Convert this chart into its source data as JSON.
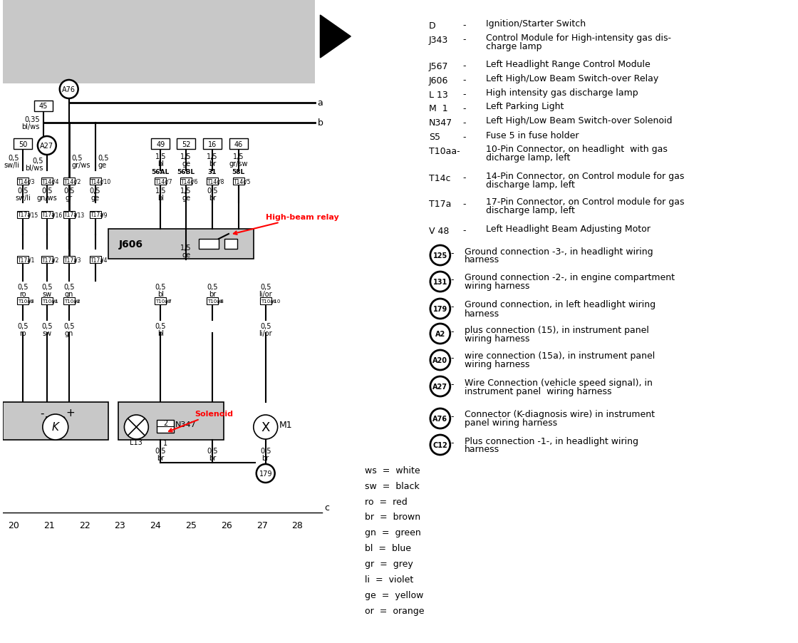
{
  "bg_color": "#ffffff",
  "gray_box_color": "#c8c8c8",
  "legend_entries": [
    [
      "D",
      "-",
      "Ignition/Starter Switch"
    ],
    [
      "J343",
      "-",
      "Control Module for High-intensity gas dis-\ncharge lamp"
    ],
    [
      "J567",
      "-",
      "Left Headlight Range Control Module"
    ],
    [
      "J606",
      "-",
      "Left High/Low Beam Switch-over Relay"
    ],
    [
      "L 13",
      "-",
      "High intensity gas discharge lamp"
    ],
    [
      "M  1",
      "-",
      "Left Parking Light"
    ],
    [
      "N347",
      "-",
      "Left High/Low Beam Switch-over Solenoid"
    ],
    [
      "S5",
      "-",
      "Fuse 5 in fuse holder"
    ],
    [
      "T10aa-",
      "",
      "10-Pin Connector, on headlight  with gas\ndicharge lamp, left"
    ],
    [
      "T14c",
      "-",
      "14-Pin Connector, on Control module for gas\ndischarge lamp, left"
    ],
    [
      "T17a",
      "-",
      "17-Pin Connector, on Control module for gas\ndischarge lamp, left"
    ],
    [
      "V 48",
      "-",
      "Left Headlight Beam Adjusting Motor"
    ]
  ],
  "circle_entries": [
    [
      "125",
      "-",
      "Ground connection -3-, in headlight wiring\nharness"
    ],
    [
      "131",
      "-",
      "Ground connection -2-, in engine compartment\nwiring harness"
    ],
    [
      "179",
      "-",
      "Ground connection, in left headlight wiring\nharness"
    ],
    [
      "A2",
      "-",
      "plus connection (15), in instrument panel\nwiring harness"
    ],
    [
      "A20",
      "-",
      "wire connection (15a), in instrument panel\nwiring harness"
    ],
    [
      "A27",
      "-",
      "Wire Connection (vehicle speed signal), in\ninstrument panel  wiring harness"
    ],
    [
      "A76",
      "-",
      "Connector (K-diagnosis wire) in instrument\npanel wiring harness"
    ],
    [
      "C12",
      "-",
      "Plus connection -1-, in headlight wiring\nharness"
    ]
  ],
  "color_legend": [
    [
      "ws",
      "=",
      "white"
    ],
    [
      "sw",
      "=",
      "black"
    ],
    [
      "ro",
      "=",
      "red"
    ],
    [
      "br",
      "=",
      "brown"
    ],
    [
      "gn",
      "=",
      "green"
    ],
    [
      "bl",
      "=",
      "blue"
    ],
    [
      "gr",
      "=",
      "grey"
    ],
    [
      "li",
      "=",
      "violet"
    ],
    [
      "ge",
      "=",
      "yellow"
    ],
    [
      "or",
      "=",
      "orange"
    ]
  ]
}
